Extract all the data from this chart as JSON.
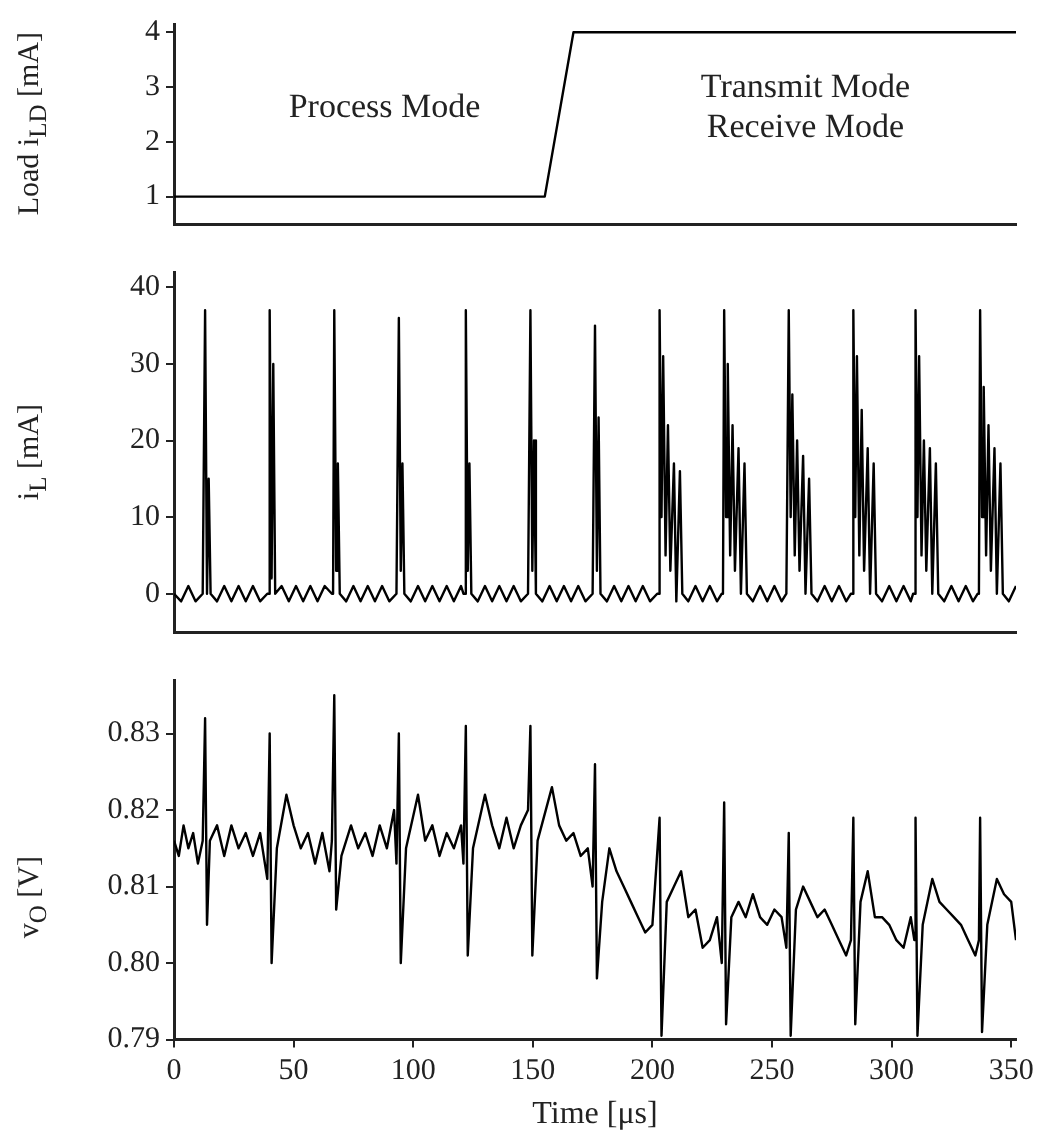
{
  "chart_data": [
    {
      "type": "line",
      "ylabel": "Load i$_{LD}$ [mA]",
      "x": [
        0,
        155,
        167,
        352
      ],
      "values": [
        1,
        1,
        4,
        4
      ],
      "color": "#000000",
      "xlim": [
        0,
        352
      ],
      "xticks": [
        0,
        50,
        100,
        150,
        200,
        250,
        300,
        350
      ],
      "ylim": [
        0.5,
        4.15
      ],
      "yticks": [
        1,
        2,
        3,
        4
      ],
      "tick_labels": "y",
      "grid": false,
      "legend": false,
      "marker": "none",
      "annotations": [
        "Process Mode",
        "Transmit Mode\nReceive Mode"
      ]
    },
    {
      "type": "line",
      "ylabel": "i$_{L}$ [mA]",
      "color": "#000000",
      "xlim": [
        0,
        352
      ],
      "xticks": [
        0,
        50,
        100,
        150,
        200,
        250,
        300,
        350
      ],
      "ylim": [
        -5,
        42
      ],
      "yticks": [
        0,
        10,
        20,
        30,
        40
      ],
      "tick_labels": "y",
      "grid": false,
      "legend": false,
      "marker": "none",
      "x": [
        0,
        3,
        6,
        9,
        12,
        12.5,
        13,
        13.8,
        14.5,
        15.3,
        18,
        21,
        24,
        27,
        30,
        33,
        36,
        39,
        39.5,
        40,
        40.8,
        41.5,
        42.3,
        45,
        48,
        51,
        54,
        57,
        60,
        63,
        66,
        66.5,
        67,
        67.8,
        68.5,
        69.3,
        72,
        75,
        78,
        81,
        84,
        87,
        90,
        93,
        93.5,
        94,
        94.8,
        95.5,
        96.3,
        99,
        102,
        105,
        108,
        111,
        114,
        117,
        120,
        121,
        121.5,
        122,
        122.8,
        123.5,
        124.3,
        127,
        130,
        133,
        136,
        139,
        142,
        145,
        148,
        148.5,
        149,
        149.8,
        150.5,
        151.3,
        154,
        157,
        160,
        163,
        166,
        169,
        172,
        175,
        175.5,
        176,
        176.8,
        177.5,
        178.3,
        181,
        184,
        187,
        190,
        193,
        196,
        199,
        202,
        202.5,
        203,
        203.8,
        204.5,
        205.5,
        206.5,
        207.5,
        209,
        210,
        211.5,
        212.5,
        215,
        218,
        221,
        224,
        227,
        229,
        229.5,
        230,
        230.8,
        231.5,
        232.5,
        233.5,
        234.5,
        236,
        237,
        238.5,
        239.5,
        242,
        245,
        248,
        251,
        254,
        256,
        256.5,
        257,
        257.8,
        258.5,
        259.5,
        260.5,
        261.5,
        263,
        264,
        265.5,
        266.5,
        269,
        272,
        275,
        278,
        281,
        283,
        283.5,
        284,
        284.8,
        285.5,
        286.5,
        287.5,
        288.5,
        290,
        291,
        292.5,
        293.5,
        296,
        299,
        302,
        305,
        308,
        309,
        309.5,
        310,
        310.8,
        311.5,
        312.5,
        313.5,
        314.5,
        316,
        317,
        318.5,
        319.5,
        322,
        325,
        328,
        331,
        334,
        336,
        336.5,
        337,
        337.8,
        338.5,
        339.5,
        340.5,
        341.5,
        343,
        344,
        345.5,
        346.5,
        349,
        352
      ],
      "values": [
        0,
        -1,
        1,
        -1,
        0,
        0,
        37,
        0,
        15,
        0,
        -1,
        1,
        -1,
        1,
        -1,
        1,
        -1,
        0,
        0,
        37,
        2,
        30,
        0,
        1,
        -1,
        1,
        -1,
        1,
        -1,
        1,
        0,
        0,
        37,
        3,
        17,
        0,
        -1,
        1,
        -1,
        1,
        -1,
        1,
        -1,
        0,
        0,
        36,
        3,
        17,
        0,
        -1,
        1,
        -1,
        1,
        -1,
        1,
        -1,
        1,
        0,
        0,
        37,
        3,
        17,
        0,
        -1,
        1,
        -1,
        1,
        -1,
        1,
        -1,
        0,
        0,
        37,
        3,
        20,
        0,
        -1,
        1,
        -1,
        1,
        -1,
        1,
        -1,
        0,
        0,
        35,
        3,
        23,
        0,
        -1,
        1,
        -1,
        1,
        -1,
        1,
        -1,
        0,
        0,
        37,
        10,
        31,
        5,
        22,
        3,
        17,
        -1,
        16,
        0,
        -1,
        1,
        -1,
        1,
        -1,
        0,
        0,
        37,
        10,
        30,
        5,
        22,
        3,
        19,
        0,
        17,
        0,
        -1,
        1,
        -1,
        1,
        -1,
        0,
        0,
        37,
        10,
        26,
        5,
        20,
        3,
        18,
        0,
        15,
        0,
        -1,
        1,
        -1,
        1,
        -1,
        0,
        0,
        37,
        10,
        31,
        5,
        24,
        3,
        19,
        0,
        17,
        0,
        -1,
        1,
        -1,
        1,
        -1,
        0,
        0,
        37,
        10,
        31,
        5,
        20,
        3,
        19,
        0,
        17,
        0,
        -1,
        1,
        -1,
        1,
        -1,
        0,
        0,
        37,
        10,
        27,
        5,
        22,
        3,
        19,
        0,
        17,
        0,
        -1,
        1
      ]
    },
    {
      "type": "line",
      "ylabel": "v$_{O}$ [V]",
      "xlabel": "Time [μs]",
      "color": "#000000",
      "xlim": [
        0,
        352
      ],
      "xticks": [
        0,
        50,
        100,
        150,
        200,
        250,
        300,
        350
      ],
      "ylim": [
        0.79,
        0.837
      ],
      "yticks": [
        {
          "value": 0.79,
          "label": "0.79"
        },
        {
          "value": 0.8,
          "label": "0.80"
        },
        {
          "value": 0.81,
          "label": "0.81"
        },
        {
          "value": 0.82,
          "label": "0.82"
        },
        {
          "value": 0.83,
          "label": "0.83"
        }
      ],
      "grid": false,
      "legend": false,
      "marker": "none",
      "x": [
        0,
        2,
        4,
        6,
        8,
        10,
        12,
        13,
        13.8,
        15,
        18,
        21,
        24,
        27,
        30,
        33,
        36,
        39,
        40,
        40.8,
        43,
        47,
        50,
        53,
        56,
        59,
        62,
        65,
        66,
        67,
        67.8,
        70,
        74,
        77,
        80,
        83,
        86,
        89,
        92,
        93,
        94,
        94.8,
        97,
        102,
        105,
        108,
        111,
        114,
        117,
        120,
        121,
        122,
        122.8,
        125,
        130,
        133,
        136,
        139,
        142,
        145,
        148,
        149,
        149.8,
        152,
        158,
        161,
        164,
        167,
        170,
        173,
        175,
        176,
        176.8,
        179,
        182,
        185,
        188,
        191,
        194,
        197,
        200,
        203,
        203.8,
        206,
        209,
        212,
        215,
        218,
        221,
        224,
        227,
        229,
        230,
        230.8,
        233,
        236,
        239,
        242,
        245,
        248,
        251,
        254,
        256,
        257,
        257.8,
        260,
        263,
        266,
        269,
        272,
        275,
        278,
        281,
        283,
        284,
        284.8,
        287,
        290,
        293,
        296,
        299,
        302,
        305,
        308,
        309.5,
        310,
        310.8,
        313,
        317,
        320,
        323,
        326,
        329,
        332,
        335,
        336.5,
        337,
        337.8,
        340,
        344,
        347,
        350,
        352
      ],
      "values": [
        0.816,
        0.814,
        0.818,
        0.815,
        0.817,
        0.813,
        0.816,
        0.832,
        0.805,
        0.816,
        0.818,
        0.814,
        0.818,
        0.815,
        0.817,
        0.814,
        0.817,
        0.811,
        0.83,
        0.8,
        0.815,
        0.822,
        0.818,
        0.815,
        0.817,
        0.813,
        0.817,
        0.812,
        0.816,
        0.835,
        0.807,
        0.814,
        0.818,
        0.815,
        0.817,
        0.814,
        0.818,
        0.815,
        0.82,
        0.813,
        0.83,
        0.8,
        0.815,
        0.822,
        0.816,
        0.818,
        0.814,
        0.817,
        0.815,
        0.818,
        0.813,
        0.831,
        0.801,
        0.815,
        0.822,
        0.818,
        0.815,
        0.819,
        0.815,
        0.818,
        0.82,
        0.831,
        0.801,
        0.816,
        0.823,
        0.818,
        0.816,
        0.817,
        0.814,
        0.815,
        0.81,
        0.826,
        0.798,
        0.808,
        0.815,
        0.812,
        0.81,
        0.808,
        0.806,
        0.804,
        0.805,
        0.819,
        0.7905,
        0.808,
        0.81,
        0.812,
        0.806,
        0.807,
        0.802,
        0.803,
        0.806,
        0.8,
        0.821,
        0.792,
        0.806,
        0.808,
        0.806,
        0.809,
        0.806,
        0.805,
        0.807,
        0.806,
        0.802,
        0.817,
        0.7905,
        0.807,
        0.81,
        0.808,
        0.806,
        0.807,
        0.805,
        0.803,
        0.801,
        0.803,
        0.819,
        0.792,
        0.808,
        0.812,
        0.806,
        0.806,
        0.805,
        0.803,
        0.802,
        0.806,
        0.803,
        0.819,
        0.7905,
        0.805,
        0.811,
        0.808,
        0.807,
        0.806,
        0.805,
        0.803,
        0.801,
        0.803,
        0.819,
        0.791,
        0.805,
        0.811,
        0.809,
        0.808,
        0.803
      ]
    }
  ]
}
